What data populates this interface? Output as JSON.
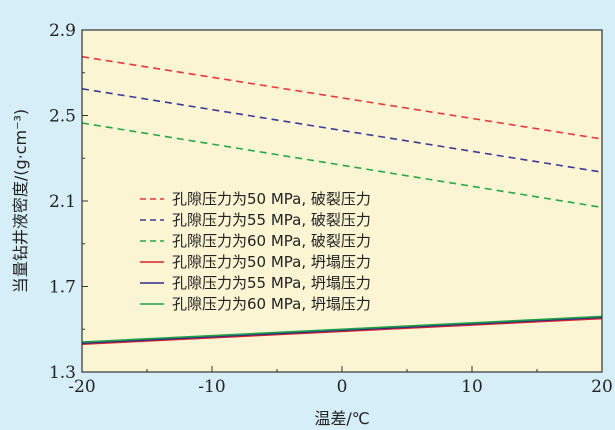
{
  "colors": {
    "background": "#d6eef8",
    "plot_background": "#fbf5d4",
    "axis": "#333333"
  },
  "chart_data": {
    "type": "line",
    "title": "",
    "xlabel": "温差/℃",
    "ylabel": "当量钻井液密度/(g·cm⁻³)",
    "xlim": [
      -20,
      20
    ],
    "ylim": [
      1.3,
      2.9
    ],
    "x_ticks": [
      "-20",
      "-10",
      "0",
      "10",
      "20"
    ],
    "y_ticks": [
      "1.3",
      "1.7",
      "2.1",
      "2.5",
      "2.9"
    ],
    "grid": false,
    "legend_position": "middle-left",
    "series": [
      {
        "name": "孔隙压力为50 MPa, 破裂压力",
        "color": "#e8383d",
        "dash": true,
        "x": [
          -20,
          20
        ],
        "y": [
          2.775,
          2.39
        ]
      },
      {
        "name": "孔隙压力为55 MPa, 破裂压力",
        "color": "#3b3b9a",
        "dash": true,
        "x": [
          -20,
          20
        ],
        "y": [
          2.625,
          2.235
        ]
      },
      {
        "name": "孔隙压力为60 MPa, 破裂压力",
        "color": "#2aa84a",
        "dash": true,
        "x": [
          -20,
          20
        ],
        "y": [
          2.465,
          2.07
        ]
      },
      {
        "name": "孔隙压力为50 MPa, 坍塌压力",
        "color": "#d8242b",
        "dash": false,
        "x": [
          -20,
          20
        ],
        "y": [
          1.43,
          1.55
        ]
      },
      {
        "name": "孔隙压力为55 MPa, 坍塌压力",
        "color": "#2c2c8a",
        "dash": false,
        "x": [
          -20,
          20
        ],
        "y": [
          1.435,
          1.555
        ]
      },
      {
        "name": "孔隙压力为60 MPa, 坍塌压力",
        "color": "#1f9e46",
        "dash": false,
        "x": [
          -20,
          20
        ],
        "y": [
          1.44,
          1.56
        ]
      }
    ]
  }
}
